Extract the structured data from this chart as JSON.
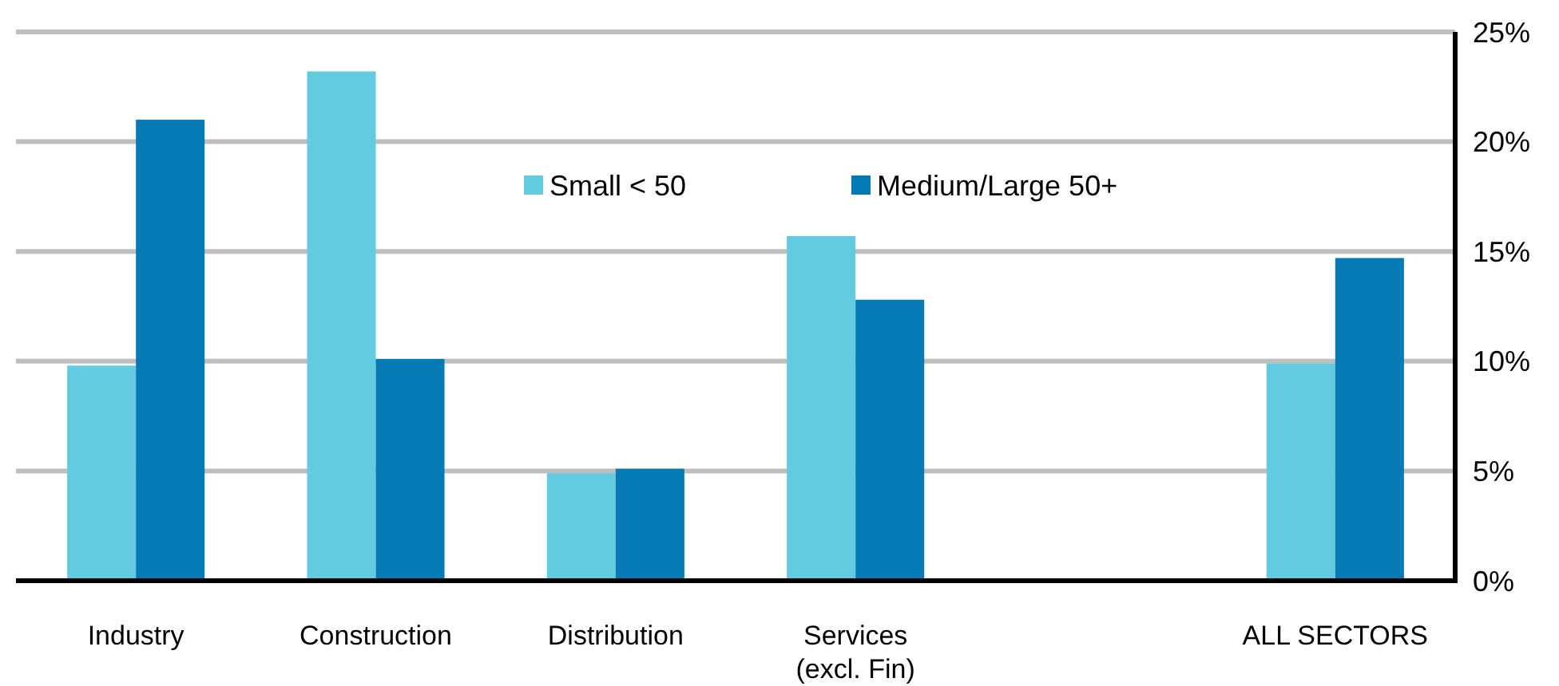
{
  "chart_data": {
    "type": "bar",
    "categories": [
      "Industry",
      "Construction",
      "Distribution",
      "Services (excl. Fin)",
      null,
      "ALL SECTORS"
    ],
    "series": [
      {
        "name": "Small < 50",
        "color": "#62cbdf",
        "values": [
          9.8,
          23.2,
          4.9,
          15.7,
          null,
          9.9
        ]
      },
      {
        "name": "Medium/Large 50+",
        "color": "#067ab4",
        "values": [
          21.0,
          10.1,
          5.1,
          12.8,
          null,
          14.7
        ]
      }
    ],
    "ylim": [
      0,
      25
    ],
    "yticks": [
      {
        "value": 0,
        "label": "0%"
      },
      {
        "value": 5,
        "label": "5%"
      },
      {
        "value": 10,
        "label": "10%"
      },
      {
        "value": 15,
        "label": "15%"
      },
      {
        "value": 20,
        "label": "20%"
      },
      {
        "value": 25,
        "label": "25%"
      }
    ],
    "grid": "y",
    "legend": "top"
  }
}
